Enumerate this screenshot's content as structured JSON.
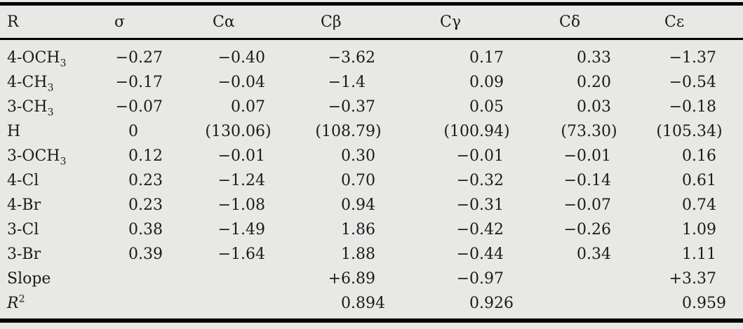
{
  "colors": {
    "background": "#e8e8e6",
    "rule": "#000000",
    "text": "#1b1b1b"
  },
  "table": {
    "columns": [
      {
        "id": "r",
        "label": {
          "text": "R"
        }
      },
      {
        "id": "sigma",
        "label": {
          "text": "σ"
        }
      },
      {
        "id": "c-alpha",
        "label": {
          "text": "Cα"
        }
      },
      {
        "id": "c-beta",
        "label": {
          "text": "Cβ"
        }
      },
      {
        "id": "c-gamma",
        "label": {
          "text": "Cγ"
        }
      },
      {
        "id": "c-delta",
        "label": {
          "text": "Cδ"
        }
      },
      {
        "id": "c-epsilon",
        "label": {
          "text": "Cε"
        }
      }
    ],
    "rows": [
      {
        "label": {
          "text": "4-OCH",
          "sub": "3"
        },
        "values": [
          "−0.27",
          "−0.40",
          "−3.62",
          "0.17",
          "0.33",
          "−1.37"
        ]
      },
      {
        "label": {
          "text": "4-CH",
          "sub": "3"
        },
        "values": [
          "−0.17",
          "−0.04",
          "−1.4",
          "0.09",
          "0.20",
          "−0.54"
        ]
      },
      {
        "label": {
          "text": "3-CH",
          "sub": "3"
        },
        "values": [
          "−0.07",
          "0.07",
          "−0.37",
          "0.05",
          "0.03",
          "−0.18"
        ]
      },
      {
        "label": {
          "text": "H"
        },
        "values": [
          "0",
          "(130.06)",
          "(108.79)",
          "(100.94)",
          "(73.30)",
          "(105.34)"
        ]
      },
      {
        "label": {
          "text": "3-OCH",
          "sub": "3"
        },
        "values": [
          "0.12",
          "−0.01",
          "0.30",
          "−0.01",
          "−0.01",
          "0.16"
        ]
      },
      {
        "label": {
          "text": "4-Cl"
        },
        "values": [
          "0.23",
          "−1.24",
          "0.70",
          "−0.32",
          "−0.14",
          "0.61"
        ]
      },
      {
        "label": {
          "text": "4-Br"
        },
        "values": [
          "0.23",
          "−1.08",
          "0.94",
          "−0.31",
          "−0.07",
          "0.74"
        ]
      },
      {
        "label": {
          "text": "3-Cl"
        },
        "values": [
          "0.38",
          "−1.49",
          "1.86",
          "−0.42",
          "−0.26",
          "1.09"
        ]
      },
      {
        "label": {
          "text": "3-Br"
        },
        "values": [
          "0.39",
          "−1.64",
          "1.88",
          "−0.44",
          "0.34",
          "1.11"
        ]
      },
      {
        "label": {
          "text": "Slope"
        },
        "values": [
          "",
          "",
          "+6.89",
          "−0.97",
          "",
          "+3.37"
        ]
      },
      {
        "label": {
          "text": "R",
          "sup": "2",
          "italic": true
        },
        "values": [
          "",
          "",
          "0.894",
          "0.926",
          "",
          "0.959"
        ]
      }
    ]
  }
}
